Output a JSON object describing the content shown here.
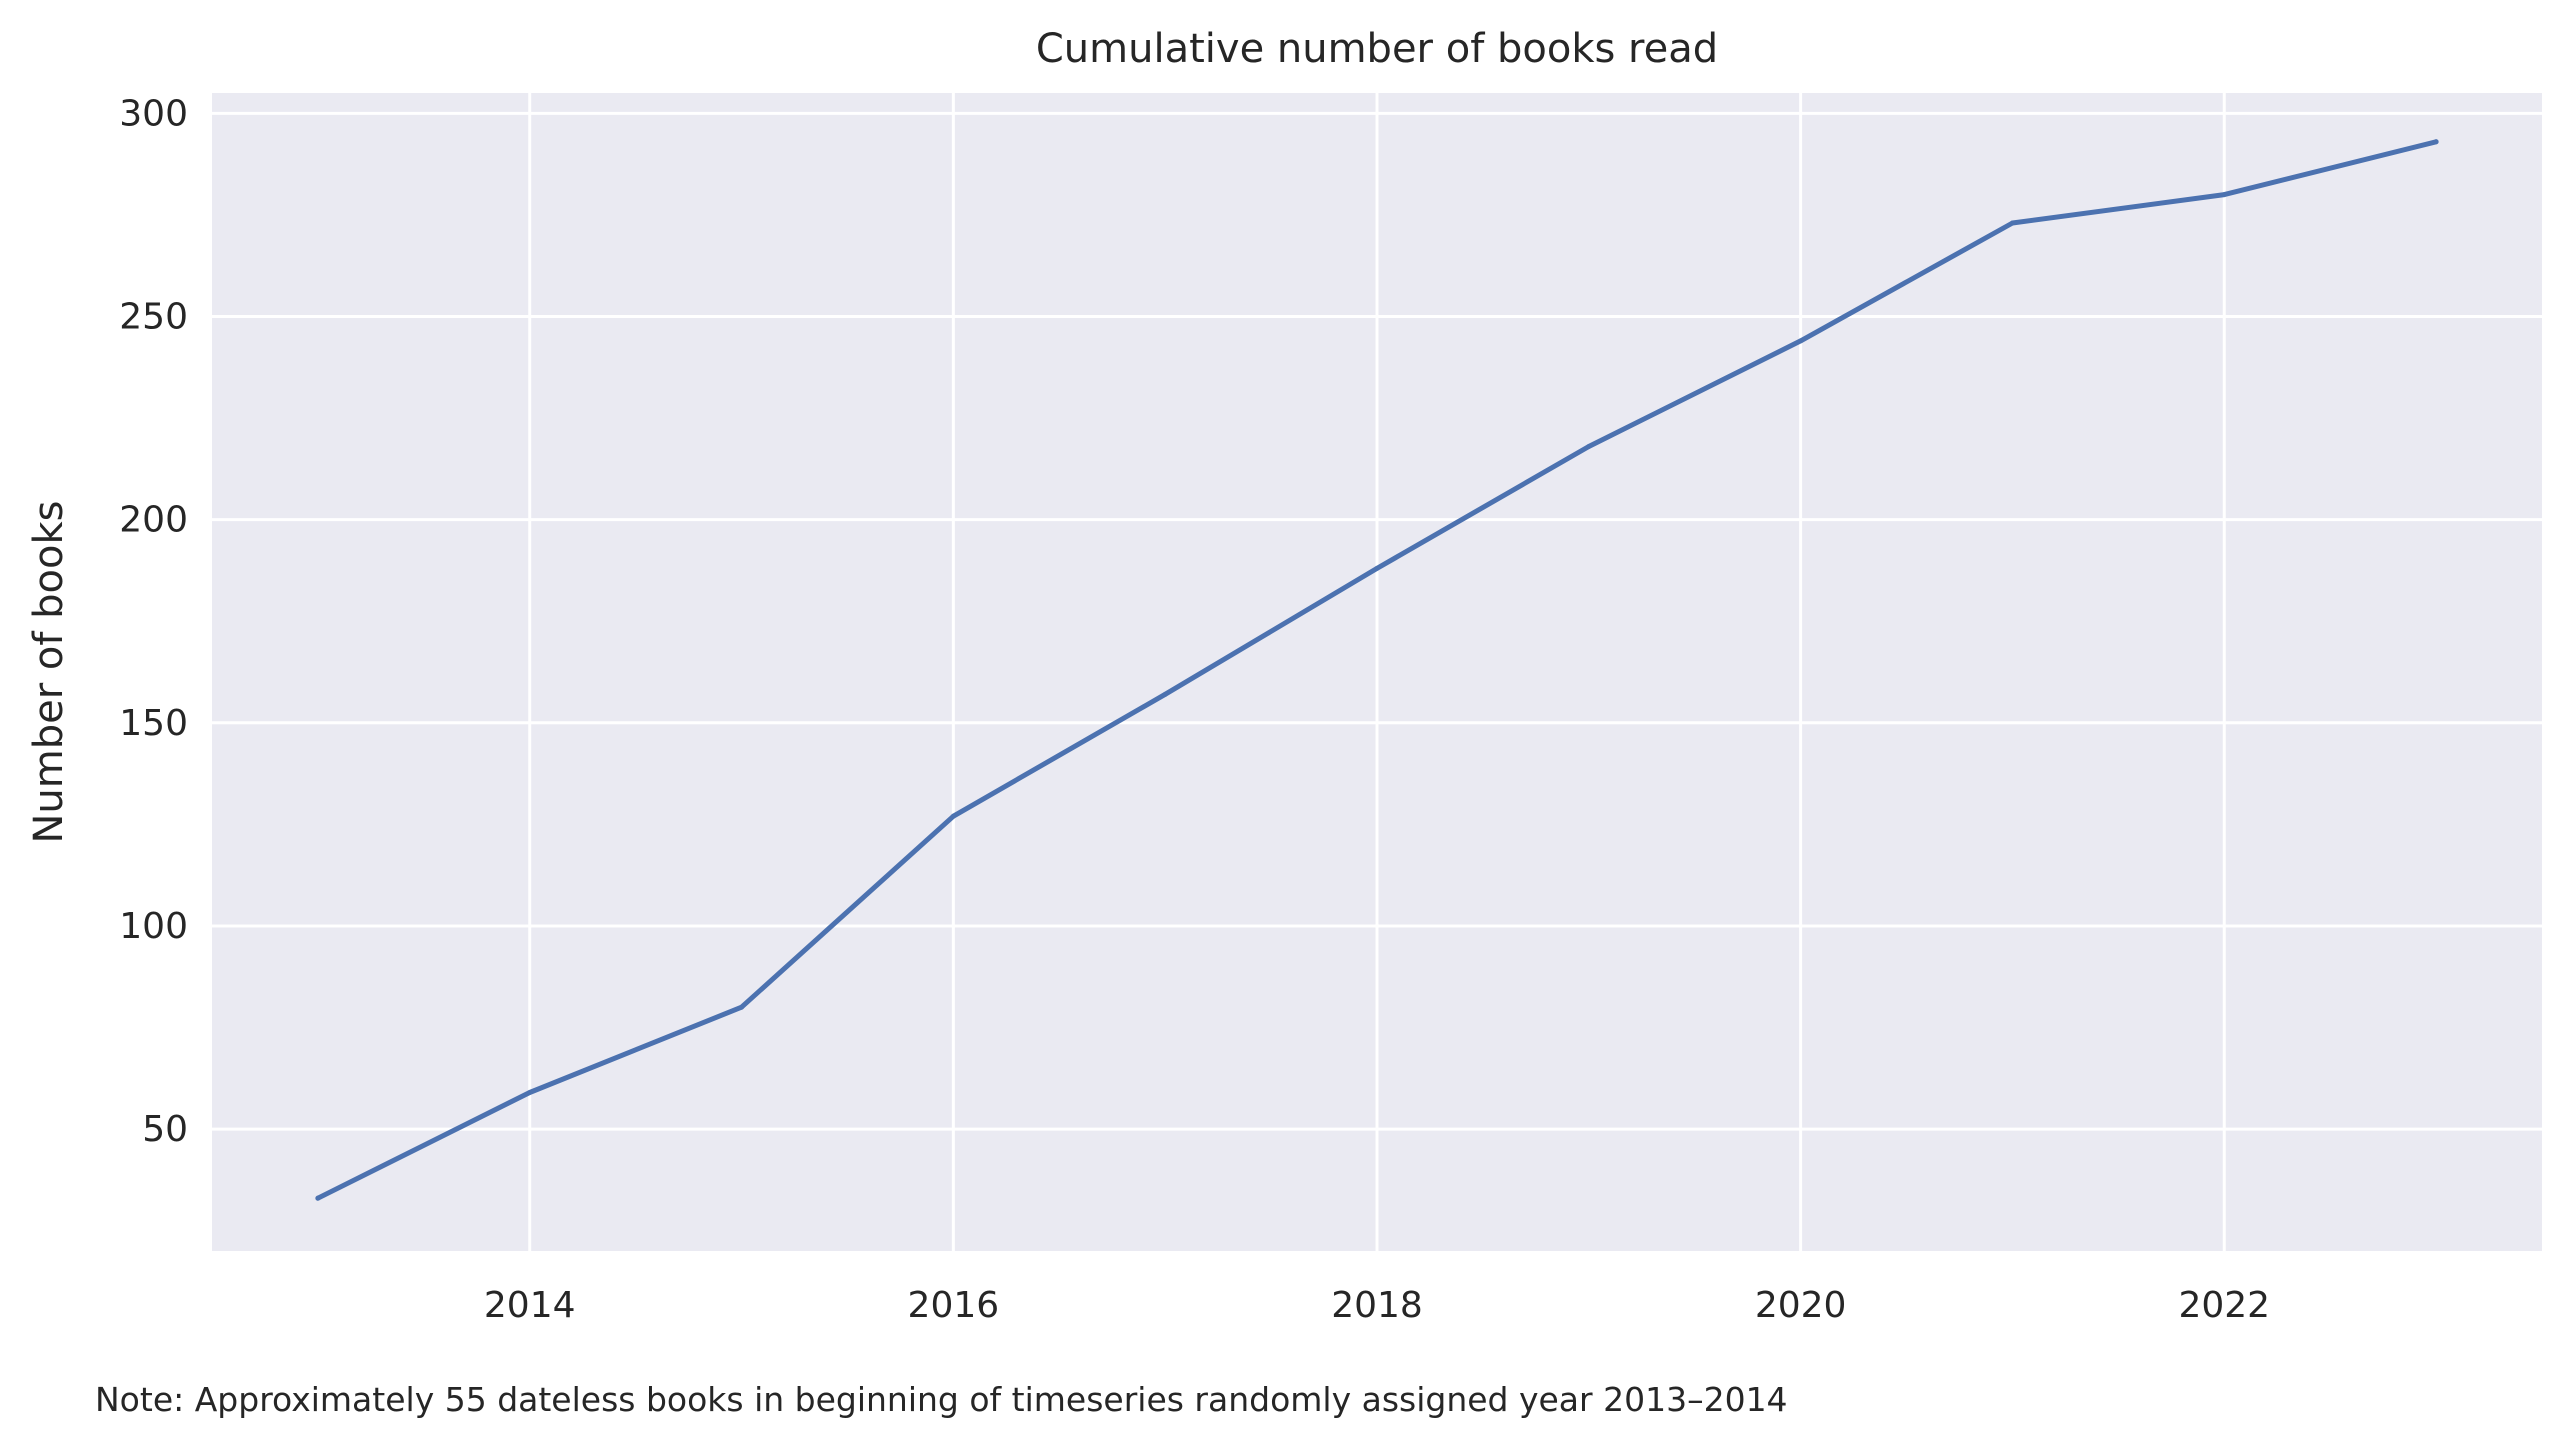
{
  "chart_data": {
    "type": "line",
    "title": "Cumulative number of books read",
    "xlabel": "",
    "ylabel": "Number of books",
    "x": [
      2013,
      2014,
      2015,
      2016,
      2017,
      2018,
      2019,
      2020,
      2021,
      2022,
      2023
    ],
    "series": [
      {
        "values": [
          33,
          59,
          80,
          127,
          157,
          188,
          218,
          244,
          273,
          280,
          293
        ]
      }
    ],
    "xlim": [
      2012.5,
      2023.5
    ],
    "ylim": [
      20,
      305
    ],
    "xticks": [
      2014,
      2016,
      2018,
      2020,
      2022
    ],
    "xtick_labels": [
      "2014",
      "2016",
      "2018",
      "2020",
      "2022"
    ],
    "yticks": [
      50,
      100,
      150,
      200,
      250,
      300
    ],
    "ytick_labels": [
      "50",
      "100",
      "150",
      "200",
      "250",
      "300"
    ],
    "grid": true,
    "legend": "none",
    "note": "Note: Approximately 55 dateless books in beginning of timeseries randomly assigned year 2013–2014",
    "colors": {
      "background": "#eaeaf2",
      "grid": "#ffffff",
      "line": "#4c72b0",
      "text": "#262626"
    }
  }
}
